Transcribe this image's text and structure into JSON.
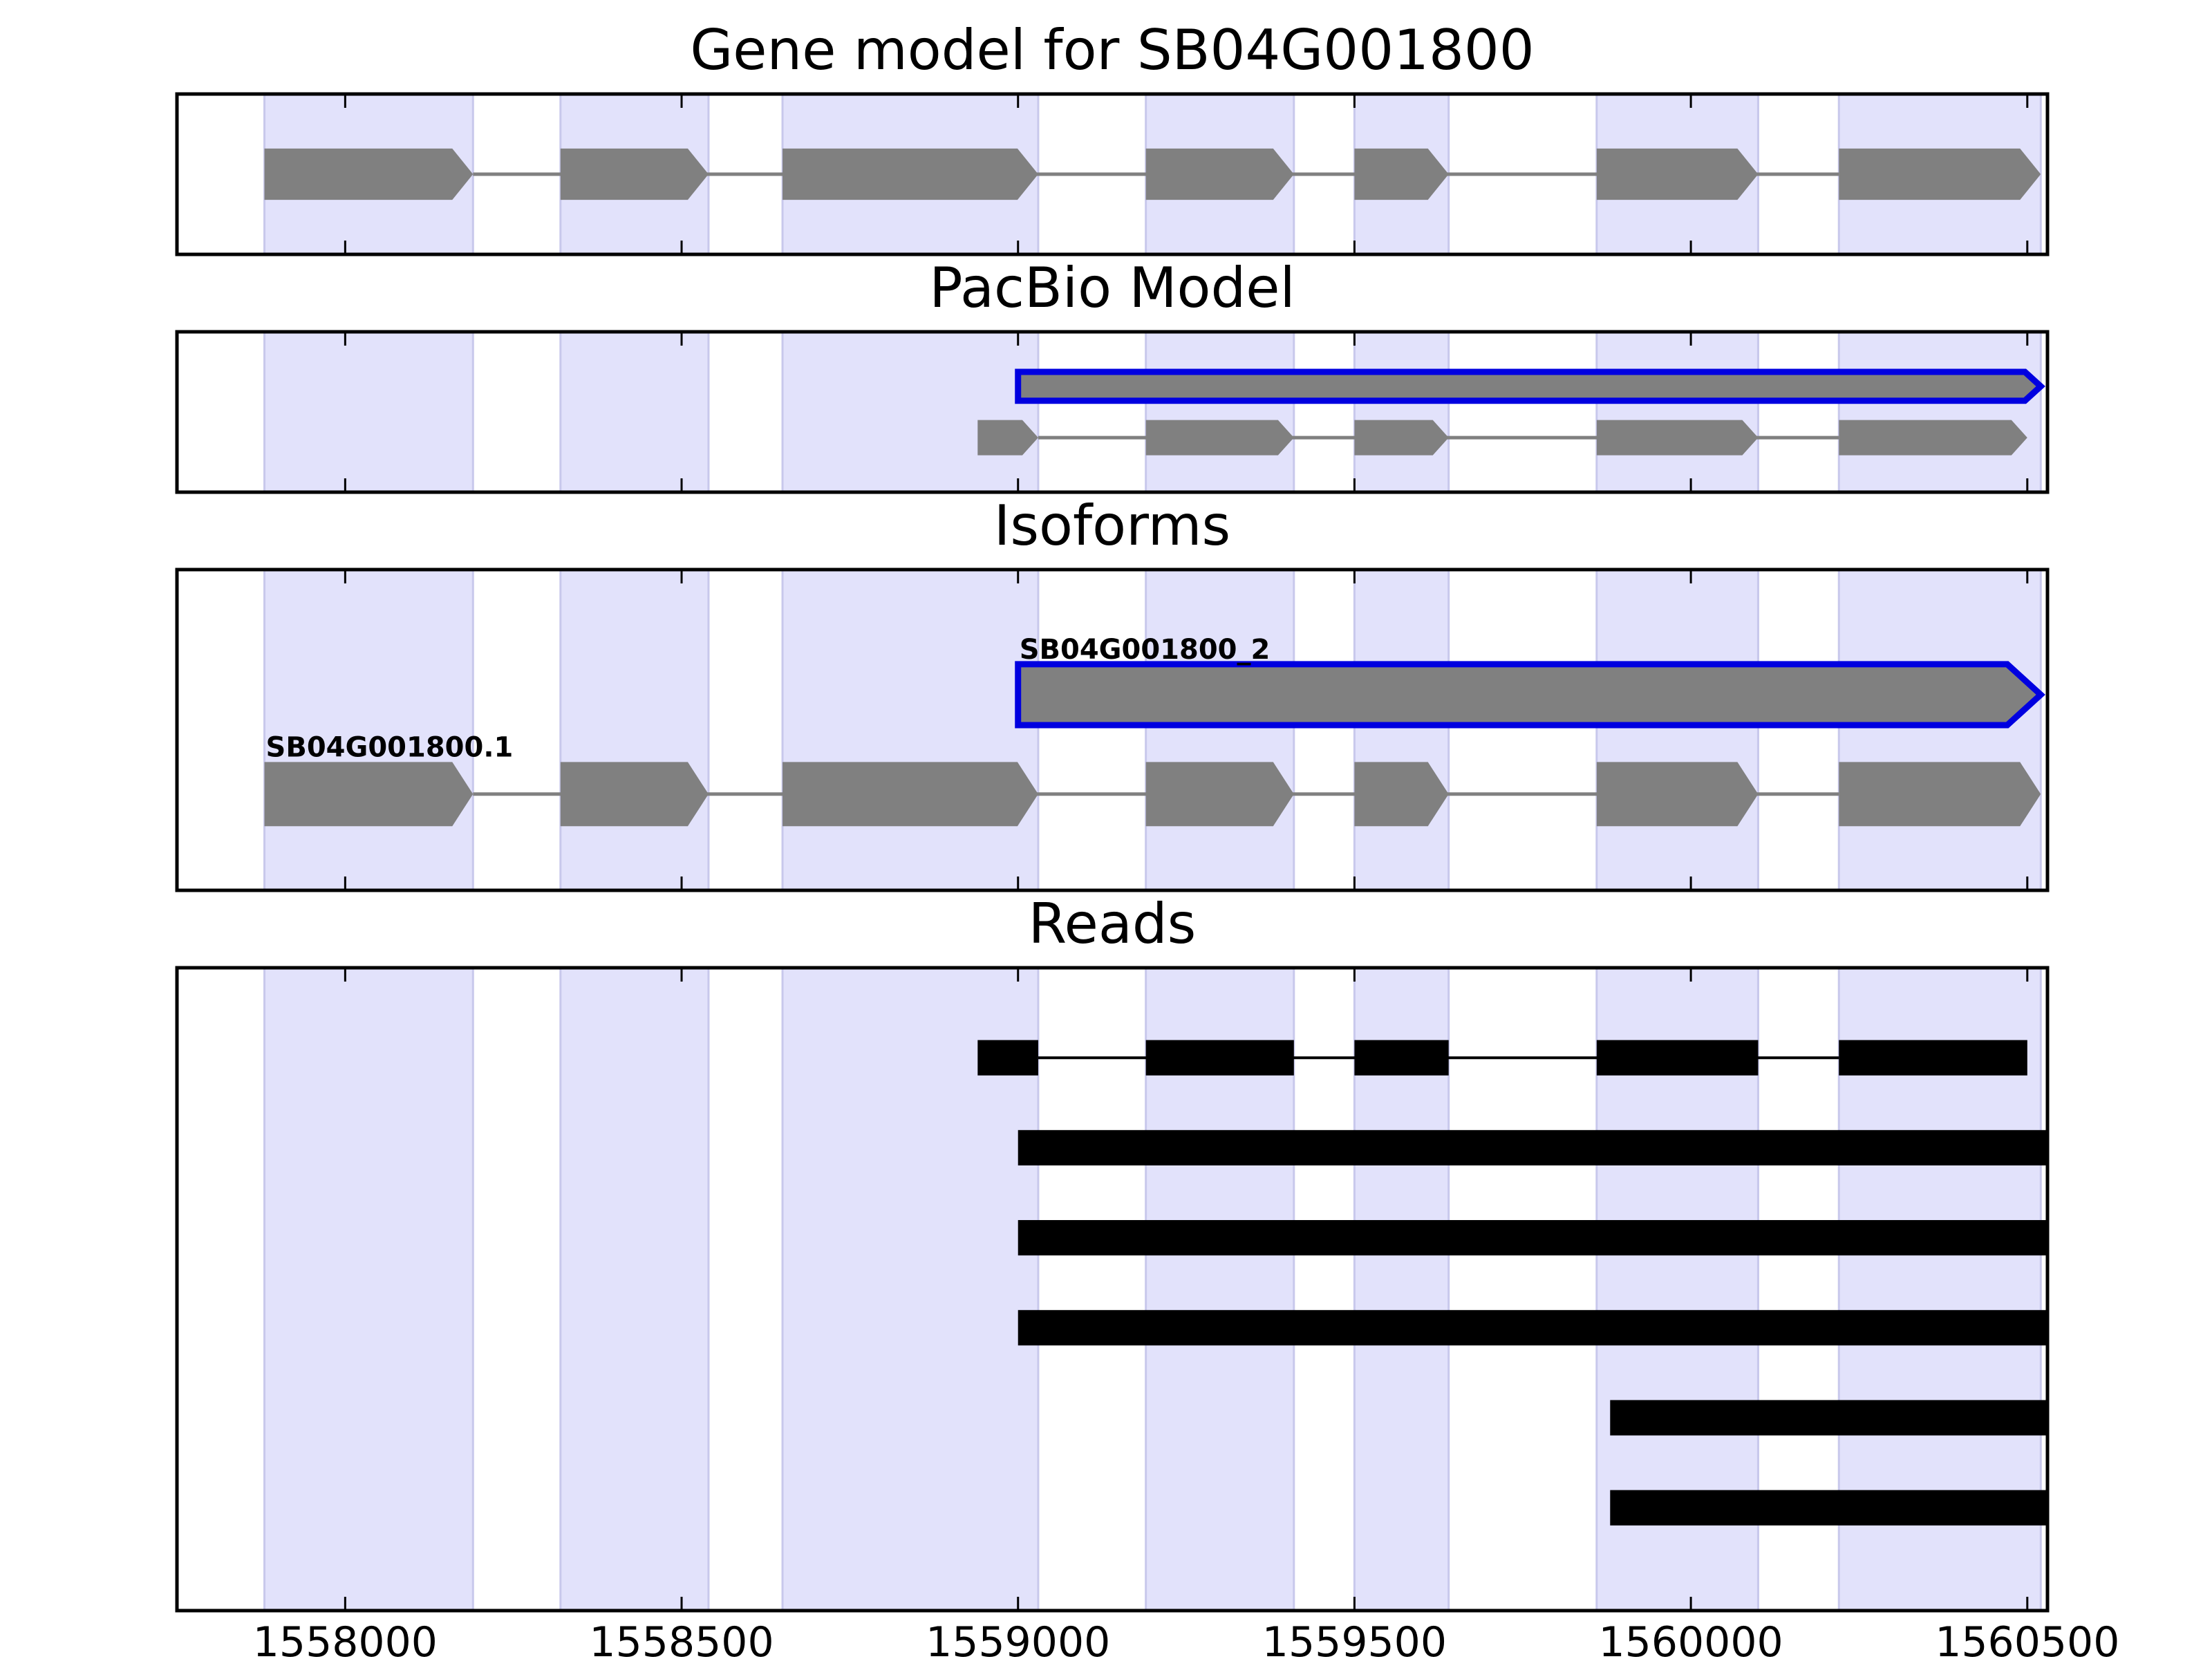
{
  "chart_data": {
    "type": "gene_model",
    "title": "Gene model for SB04G001800",
    "xlim": [
      1557750,
      1560530
    ],
    "x_ticks": [
      1558000,
      1558500,
      1559000,
      1559500,
      1560000,
      1560500
    ],
    "x_tick_labels": [
      "1558000",
      "1558500",
      "1559000",
      "1559500",
      "1560000",
      "1560500"
    ],
    "exon_regions": [
      [
        1557880,
        1558190
      ],
      [
        1558320,
        1558540
      ],
      [
        1558650,
        1559030
      ],
      [
        1559190,
        1559410
      ],
      [
        1559500,
        1559640
      ],
      [
        1559860,
        1560100
      ],
      [
        1560220,
        1560520
      ]
    ],
    "panels": [
      {
        "title": "Gene model for SB04G001800",
        "kind": "gene",
        "ylim": [
          0,
          1
        ],
        "tracks": [
          {
            "label": "",
            "y": 0.5,
            "height": 0.32,
            "style": "gray",
            "exons": [
              [
                1557880,
                1558190
              ],
              [
                1558320,
                1558540
              ],
              [
                1558650,
                1559030
              ],
              [
                1559190,
                1559410
              ],
              [
                1559500,
                1559640
              ],
              [
                1559860,
                1560100
              ],
              [
                1560220,
                1560520
              ]
            ]
          }
        ]
      },
      {
        "title": "PacBio Model",
        "kind": "gene",
        "ylim": [
          0,
          1
        ],
        "tracks": [
          {
            "label": "",
            "y": 0.34,
            "height": 0.18,
            "style": "blue-outline",
            "exons": [
              [
                1559000,
                1560520
              ]
            ]
          },
          {
            "label": "",
            "y": 0.66,
            "height": 0.22,
            "style": "gray",
            "exons": [
              [
                1558940,
                1559030
              ],
              [
                1559190,
                1559410
              ],
              [
                1559500,
                1559640
              ],
              [
                1559860,
                1560100
              ],
              [
                1560220,
                1560500
              ]
            ]
          }
        ]
      },
      {
        "title": "Isoforms",
        "kind": "gene",
        "ylim": [
          0,
          1
        ],
        "tracks": [
          {
            "label": "SB04G001800_2",
            "y": 0.39,
            "height": 0.19,
            "style": "blue-outline",
            "exons": [
              [
                1559000,
                1560520
              ]
            ]
          },
          {
            "label": "SB04G001800.1",
            "y": 0.7,
            "height": 0.2,
            "style": "gray",
            "exons": [
              [
                1557880,
                1558190
              ],
              [
                1558320,
                1558540
              ],
              [
                1558650,
                1559030
              ],
              [
                1559190,
                1559410
              ],
              [
                1559500,
                1559640
              ],
              [
                1559860,
                1560100
              ],
              [
                1560220,
                1560520
              ]
            ]
          }
        ]
      },
      {
        "title": "Reads",
        "kind": "reads",
        "ylim": [
          0,
          1
        ],
        "tracks": [
          {
            "label": "",
            "y": 0.14,
            "height": 0.055,
            "exons": [
              [
                1558940,
                1559030
              ],
              [
                1559190,
                1559410
              ],
              [
                1559500,
                1559640
              ],
              [
                1559860,
                1560100
              ],
              [
                1560220,
                1560500
              ]
            ]
          },
          {
            "label": "",
            "y": 0.28,
            "height": 0.055,
            "exons": [
              [
                1559000,
                1560530
              ]
            ]
          },
          {
            "label": "",
            "y": 0.42,
            "height": 0.055,
            "exons": [
              [
                1559000,
                1560530
              ]
            ]
          },
          {
            "label": "",
            "y": 0.56,
            "height": 0.055,
            "exons": [
              [
                1559000,
                1560530
              ]
            ]
          },
          {
            "label": "",
            "y": 0.7,
            "height": 0.055,
            "exons": [
              [
                1559880,
                1560530
              ]
            ]
          },
          {
            "label": "",
            "y": 0.84,
            "height": 0.055,
            "exons": [
              [
                1559880,
                1560530
              ]
            ]
          }
        ]
      }
    ]
  },
  "colors": {
    "exon_fill": "#808080",
    "exon_shade": "#e2e2fb",
    "isoform_outline": "#0000e0",
    "intron_line": "#808080",
    "read_fill": "#000000",
    "axis": "#000000"
  }
}
